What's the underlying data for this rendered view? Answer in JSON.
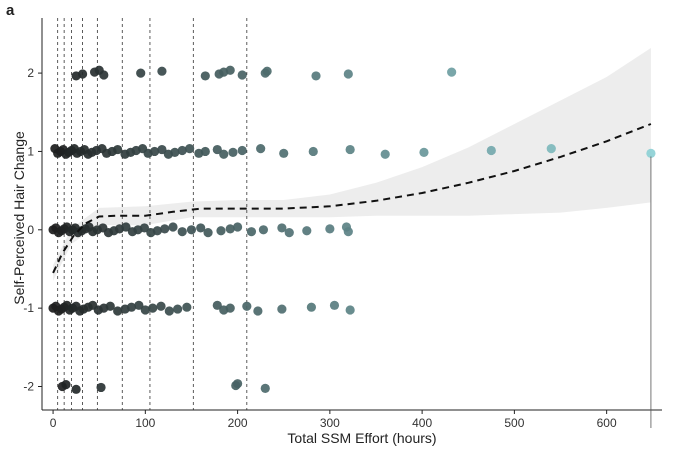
{
  "chart_data": {
    "type": "scatter",
    "panel_label": "a",
    "title": "",
    "xlabel": "Total SSM Effort (hours)",
    "ylabel": "Self-Perceived Hair Change",
    "xlim": [
      -12,
      660
    ],
    "ylim": [
      -2.3,
      2.55
    ],
    "x_ticks": [
      0,
      100,
      200,
      300,
      400,
      500,
      600
    ],
    "y_ticks": [
      -2,
      -1,
      0,
      1,
      2
    ],
    "grid": false,
    "legend": "none",
    "point_color_low": "#1b1b1b",
    "point_color_high": "#8fd3d8",
    "trend_color": "#111111",
    "band_color": "#ebebeb",
    "vertical_dashed_lines_x": [
      5,
      12,
      20,
      32,
      48,
      75,
      105,
      152,
      210
    ],
    "points": [
      {
        "x": 25,
        "y": 2
      },
      {
        "x": 32,
        "y": 2
      },
      {
        "x": 45,
        "y": 2
      },
      {
        "x": 50,
        "y": 2
      },
      {
        "x": 55,
        "y": 2
      },
      {
        "x": 95,
        "y": 2
      },
      {
        "x": 118,
        "y": 2
      },
      {
        "x": 165,
        "y": 2
      },
      {
        "x": 180,
        "y": 2
      },
      {
        "x": 185,
        "y": 2
      },
      {
        "x": 192,
        "y": 2
      },
      {
        "x": 205,
        "y": 2
      },
      {
        "x": 230,
        "y": 2
      },
      {
        "x": 232,
        "y": 2
      },
      {
        "x": 285,
        "y": 2
      },
      {
        "x": 320,
        "y": 2
      },
      {
        "x": 432,
        "y": 2
      },
      {
        "x": 2,
        "y": 1
      },
      {
        "x": 5,
        "y": 1
      },
      {
        "x": 8,
        "y": 1
      },
      {
        "x": 11,
        "y": 1
      },
      {
        "x": 14,
        "y": 1
      },
      {
        "x": 17,
        "y": 1
      },
      {
        "x": 20,
        "y": 1
      },
      {
        "x": 23,
        "y": 1
      },
      {
        "x": 26,
        "y": 1
      },
      {
        "x": 30,
        "y": 1
      },
      {
        "x": 34,
        "y": 1
      },
      {
        "x": 38,
        "y": 1
      },
      {
        "x": 42,
        "y": 1
      },
      {
        "x": 47,
        "y": 1
      },
      {
        "x": 53,
        "y": 1
      },
      {
        "x": 58,
        "y": 1
      },
      {
        "x": 64,
        "y": 1
      },
      {
        "x": 70,
        "y": 1
      },
      {
        "x": 78,
        "y": 1
      },
      {
        "x": 84,
        "y": 1
      },
      {
        "x": 90,
        "y": 1
      },
      {
        "x": 97,
        "y": 1
      },
      {
        "x": 103,
        "y": 1
      },
      {
        "x": 110,
        "y": 1
      },
      {
        "x": 118,
        "y": 1
      },
      {
        "x": 125,
        "y": 1
      },
      {
        "x": 132,
        "y": 1
      },
      {
        "x": 140,
        "y": 1
      },
      {
        "x": 148,
        "y": 1
      },
      {
        "x": 158,
        "y": 1
      },
      {
        "x": 165,
        "y": 1
      },
      {
        "x": 178,
        "y": 1
      },
      {
        "x": 185,
        "y": 1
      },
      {
        "x": 195,
        "y": 1
      },
      {
        "x": 205,
        "y": 1
      },
      {
        "x": 225,
        "y": 1
      },
      {
        "x": 250,
        "y": 1
      },
      {
        "x": 282,
        "y": 1
      },
      {
        "x": 322,
        "y": 1
      },
      {
        "x": 360,
        "y": 1
      },
      {
        "x": 402,
        "y": 1
      },
      {
        "x": 475,
        "y": 1
      },
      {
        "x": 540,
        "y": 1
      },
      {
        "x": 648,
        "y": 1
      },
      {
        "x": 0,
        "y": 0
      },
      {
        "x": 3,
        "y": 0
      },
      {
        "x": 6,
        "y": 0
      },
      {
        "x": 9,
        "y": 0
      },
      {
        "x": 12,
        "y": 0
      },
      {
        "x": 15,
        "y": 0
      },
      {
        "x": 18,
        "y": 0
      },
      {
        "x": 21,
        "y": 0
      },
      {
        "x": 24,
        "y": 0
      },
      {
        "x": 27,
        "y": 0
      },
      {
        "x": 31,
        "y": 0
      },
      {
        "x": 35,
        "y": 0
      },
      {
        "x": 39,
        "y": 0
      },
      {
        "x": 43,
        "y": 0
      },
      {
        "x": 48,
        "y": 0
      },
      {
        "x": 54,
        "y": 0
      },
      {
        "x": 60,
        "y": 0
      },
      {
        "x": 66,
        "y": 0
      },
      {
        "x": 72,
        "y": 0
      },
      {
        "x": 79,
        "y": 0
      },
      {
        "x": 86,
        "y": 0
      },
      {
        "x": 92,
        "y": 0
      },
      {
        "x": 99,
        "y": 0
      },
      {
        "x": 106,
        "y": 0
      },
      {
        "x": 113,
        "y": 0
      },
      {
        "x": 121,
        "y": 0
      },
      {
        "x": 130,
        "y": 0
      },
      {
        "x": 140,
        "y": 0
      },
      {
        "x": 150,
        "y": 0
      },
      {
        "x": 160,
        "y": 0
      },
      {
        "x": 168,
        "y": 0
      },
      {
        "x": 182,
        "y": 0
      },
      {
        "x": 192,
        "y": 0
      },
      {
        "x": 200,
        "y": 0
      },
      {
        "x": 215,
        "y": 0
      },
      {
        "x": 228,
        "y": 0
      },
      {
        "x": 248,
        "y": 0
      },
      {
        "x": 256,
        "y": 0
      },
      {
        "x": 275,
        "y": 0
      },
      {
        "x": 300,
        "y": 0
      },
      {
        "x": 318,
        "y": 0
      },
      {
        "x": 320,
        "y": 0
      },
      {
        "x": 0,
        "y": -1
      },
      {
        "x": 3,
        "y": -1
      },
      {
        "x": 6,
        "y": -1
      },
      {
        "x": 9,
        "y": -1
      },
      {
        "x": 12,
        "y": -1
      },
      {
        "x": 15,
        "y": -1
      },
      {
        "x": 18,
        "y": -1
      },
      {
        "x": 21,
        "y": -1
      },
      {
        "x": 25,
        "y": -1
      },
      {
        "x": 29,
        "y": -1
      },
      {
        "x": 33,
        "y": -1
      },
      {
        "x": 38,
        "y": -1
      },
      {
        "x": 43,
        "y": -1
      },
      {
        "x": 49,
        "y": -1
      },
      {
        "x": 55,
        "y": -1
      },
      {
        "x": 62,
        "y": -1
      },
      {
        "x": 70,
        "y": -1
      },
      {
        "x": 78,
        "y": -1
      },
      {
        "x": 85,
        "y": -1
      },
      {
        "x": 93,
        "y": -1
      },
      {
        "x": 100,
        "y": -1
      },
      {
        "x": 108,
        "y": -1
      },
      {
        "x": 117,
        "y": -1
      },
      {
        "x": 126,
        "y": -1
      },
      {
        "x": 135,
        "y": -1
      },
      {
        "x": 145,
        "y": -1
      },
      {
        "x": 178,
        "y": -1
      },
      {
        "x": 185,
        "y": -1
      },
      {
        "x": 192,
        "y": -1
      },
      {
        "x": 210,
        "y": -1
      },
      {
        "x": 222,
        "y": -1
      },
      {
        "x": 248,
        "y": -1
      },
      {
        "x": 280,
        "y": -1
      },
      {
        "x": 305,
        "y": -1
      },
      {
        "x": 322,
        "y": -1
      },
      {
        "x": 10,
        "y": -2
      },
      {
        "x": 14,
        "y": -2
      },
      {
        "x": 25,
        "y": -2
      },
      {
        "x": 52,
        "y": -2
      },
      {
        "x": 198,
        "y": -2
      },
      {
        "x": 200,
        "y": -2
      },
      {
        "x": 230,
        "y": -2
      }
    ],
    "trend": [
      {
        "x": 0,
        "y": -0.55
      },
      {
        "x": 10,
        "y": -0.3
      },
      {
        "x": 22,
        "y": -0.08
      },
      {
        "x": 35,
        "y": 0.08
      },
      {
        "x": 50,
        "y": 0.17
      },
      {
        "x": 70,
        "y": 0.18
      },
      {
        "x": 100,
        "y": 0.18
      },
      {
        "x": 130,
        "y": 0.23
      },
      {
        "x": 160,
        "y": 0.27
      },
      {
        "x": 200,
        "y": 0.27
      },
      {
        "x": 250,
        "y": 0.27
      },
      {
        "x": 300,
        "y": 0.3
      },
      {
        "x": 350,
        "y": 0.37
      },
      {
        "x": 400,
        "y": 0.47
      },
      {
        "x": 450,
        "y": 0.6
      },
      {
        "x": 500,
        "y": 0.75
      },
      {
        "x": 550,
        "y": 0.93
      },
      {
        "x": 600,
        "y": 1.13
      },
      {
        "x": 648,
        "y": 1.35
      }
    ],
    "band_upper": [
      {
        "x": 0,
        "y": -0.45
      },
      {
        "x": 20,
        "y": 0.02
      },
      {
        "x": 50,
        "y": 0.28
      },
      {
        "x": 100,
        "y": 0.3
      },
      {
        "x": 150,
        "y": 0.36
      },
      {
        "x": 200,
        "y": 0.38
      },
      {
        "x": 250,
        "y": 0.38
      },
      {
        "x": 300,
        "y": 0.45
      },
      {
        "x": 350,
        "y": 0.6
      },
      {
        "x": 400,
        "y": 0.8
      },
      {
        "x": 450,
        "y": 1.05
      },
      {
        "x": 500,
        "y": 1.35
      },
      {
        "x": 550,
        "y": 1.65
      },
      {
        "x": 600,
        "y": 1.95
      },
      {
        "x": 648,
        "y": 2.32
      }
    ],
    "band_lower": [
      {
        "x": 0,
        "y": -0.65
      },
      {
        "x": 20,
        "y": -0.18
      },
      {
        "x": 50,
        "y": 0.06
      },
      {
        "x": 100,
        "y": 0.06
      },
      {
        "x": 150,
        "y": 0.16
      },
      {
        "x": 200,
        "y": 0.16
      },
      {
        "x": 250,
        "y": 0.16
      },
      {
        "x": 300,
        "y": 0.16
      },
      {
        "x": 350,
        "y": 0.18
      },
      {
        "x": 400,
        "y": 0.18
      },
      {
        "x": 450,
        "y": 0.18
      },
      {
        "x": 500,
        "y": 0.2
      },
      {
        "x": 550,
        "y": 0.22
      },
      {
        "x": 600,
        "y": 0.28
      },
      {
        "x": 648,
        "y": 0.35
      }
    ]
  }
}
